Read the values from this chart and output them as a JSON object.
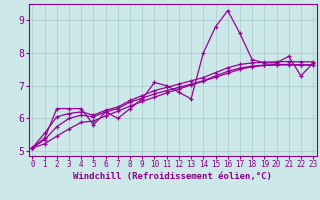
{
  "x_values": [
    0,
    1,
    2,
    3,
    4,
    5,
    6,
    7,
    8,
    9,
    10,
    11,
    12,
    13,
    14,
    15,
    16,
    17,
    18,
    19,
    20,
    21,
    22,
    23
  ],
  "series_main": [
    5.1,
    5.4,
    6.3,
    6.3,
    6.3,
    5.8,
    6.2,
    6.0,
    6.3,
    6.6,
    7.1,
    7.0,
    6.8,
    6.6,
    8.0,
    8.8,
    9.3,
    8.6,
    7.8,
    7.7,
    7.7,
    7.9,
    7.3,
    7.7
  ],
  "series_upper": [
    5.1,
    5.55,
    6.05,
    6.15,
    6.2,
    6.1,
    6.25,
    6.35,
    6.55,
    6.7,
    6.85,
    6.95,
    7.05,
    7.15,
    7.25,
    7.4,
    7.55,
    7.65,
    7.7,
    7.72,
    7.73,
    7.74,
    7.73,
    7.73
  ],
  "series_mid": [
    5.1,
    5.35,
    5.75,
    6.0,
    6.1,
    6.05,
    6.2,
    6.3,
    6.5,
    6.62,
    6.75,
    6.85,
    6.95,
    7.05,
    7.15,
    7.3,
    7.44,
    7.54,
    7.6,
    7.63,
    7.65,
    7.65,
    7.64,
    7.64
  ],
  "series_linear": [
    5.1,
    5.22,
    5.46,
    5.68,
    5.88,
    5.92,
    6.08,
    6.22,
    6.38,
    6.52,
    6.65,
    6.78,
    6.9,
    7.02,
    7.14,
    7.26,
    7.38,
    7.5,
    7.58,
    7.62,
    7.63,
    7.64,
    7.63,
    7.63
  ],
  "line_color": "#990099",
  "marker": "+",
  "xlabel": "Windchill (Refroidissement éolien,°C)",
  "xlim": [
    -0.3,
    23.3
  ],
  "ylim": [
    4.85,
    9.5
  ],
  "yticks": [
    5,
    6,
    7,
    8,
    9
  ],
  "xticks": [
    0,
    1,
    2,
    3,
    4,
    5,
    6,
    7,
    8,
    9,
    10,
    11,
    12,
    13,
    14,
    15,
    16,
    17,
    18,
    19,
    20,
    21,
    22,
    23
  ],
  "bg_color": "#cce8e8",
  "grid_color": "#a8cccc",
  "font_color": "#880088",
  "spine_color": "#880088"
}
